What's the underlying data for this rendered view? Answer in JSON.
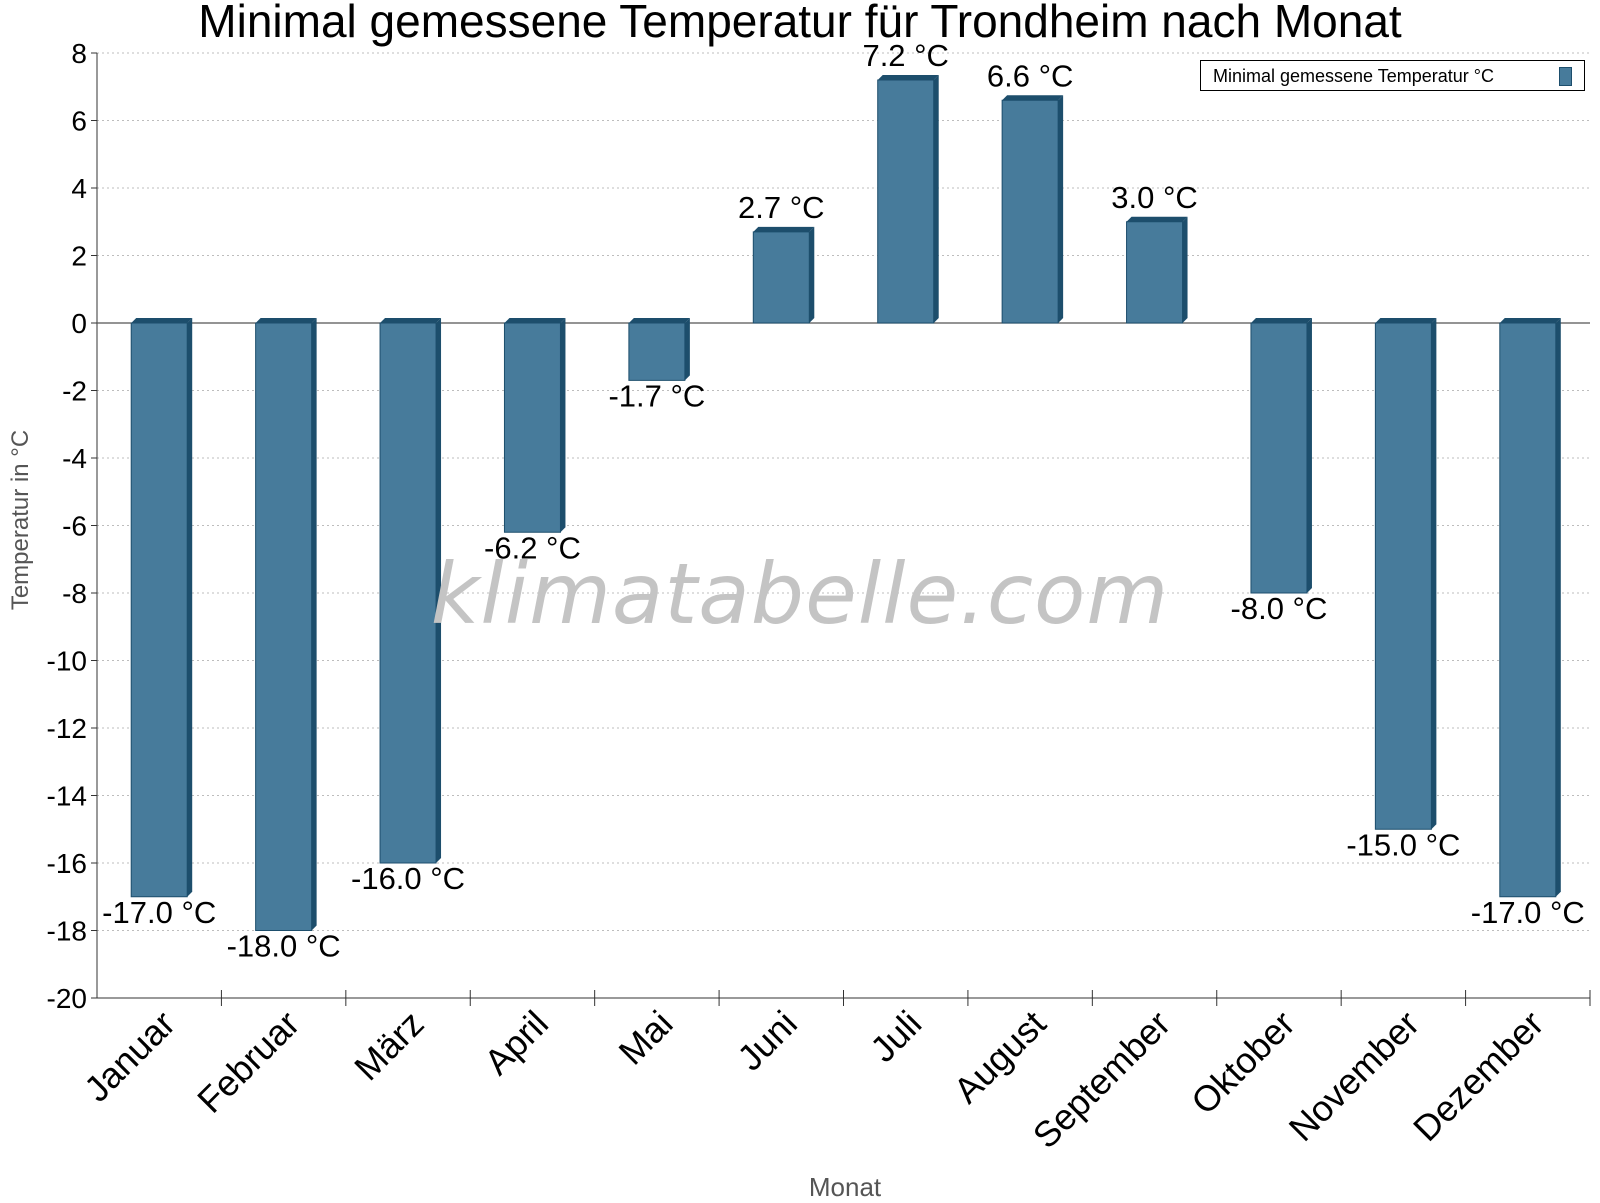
{
  "chart_data": {
    "type": "bar",
    "title": "Minimal gemessene Temperatur für Trondheim nach Monat",
    "xlabel": "Monat",
    "ylabel": "Temperatur in °C",
    "categories": [
      "Januar",
      "Februar",
      "März",
      "April",
      "Mai",
      "Juni",
      "Juli",
      "August",
      "September",
      "Oktober",
      "November",
      "Dezember"
    ],
    "series": [
      {
        "name": "Minimal gemessene Temperatur °C",
        "values": [
          -17.0,
          -18.0,
          -16.0,
          -6.2,
          -1.7,
          2.7,
          7.2,
          6.6,
          3.0,
          -8.0,
          -15.0,
          -17.0
        ]
      }
    ],
    "data_labels": [
      "-17.0 °C",
      "-18.0 °C",
      "-16.0 °C",
      "-6.2 °C",
      "-1.7 °C",
      "2.7 °C",
      "7.2 °C",
      "6.6 °C",
      "3.0 °C",
      "-8.0 °C",
      "-15.0 °C",
      "-17.0 °C"
    ],
    "yticks": [
      8,
      6,
      4,
      2,
      0,
      -2,
      -4,
      -6,
      -8,
      -10,
      -12,
      -14,
      -16,
      -18,
      -20
    ],
    "ylim": [
      -20,
      8
    ],
    "grid": true,
    "legend_position": "top-right",
    "colors": {
      "bar": "#477b9b",
      "bar_edge": "#1d4e6c",
      "grid": "#bdbdbd",
      "watermark": "#c4c4c4"
    },
    "watermark": "klimatabelle.com"
  }
}
